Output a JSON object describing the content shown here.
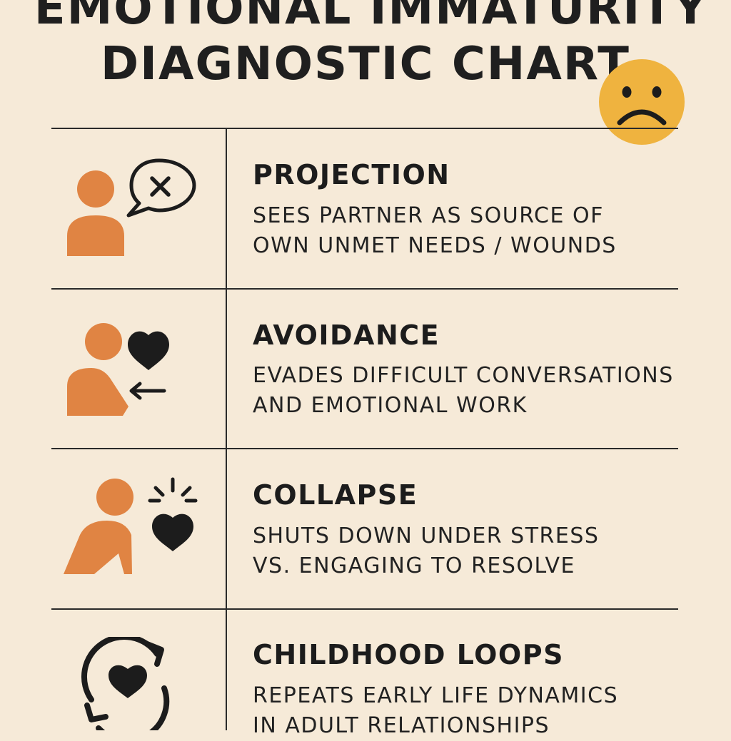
{
  "header": {
    "title_line_1": "EMOTIONAL IMMATURITY",
    "title_line_2": "DIAGNOSTIC CHART"
  },
  "colors": {
    "background": "#f6ead8",
    "figure_orange": "#e08443",
    "ink": "#1c1c1c",
    "face_yellow": "#efb33f"
  },
  "rows": [
    {
      "icon": "person-speech-bubble-x-icon",
      "title": "PROJECTION",
      "desc_line_1": "SEES PARTNER AS SOURCE OF",
      "desc_line_2": "OWN UNMET NEEDS / WOUNDS"
    },
    {
      "icon": "person-turning-from-heart-icon",
      "title": "AVOIDANCE",
      "desc_line_1": "EVADES DIFFICULT CONVERSATIONS",
      "desc_line_2": "AND EMOTIONAL WORK"
    },
    {
      "icon": "person-breaking-heart-icon",
      "title": "COLLAPSE",
      "desc_line_1": "SHUTS DOWN UNDER STRESS",
      "desc_line_2": "VS. ENGAGING TO RESOLVE"
    },
    {
      "icon": "heart-cycle-arrows-icon",
      "title": "CHILDHOOD LOOPS",
      "desc_line_1": "REPEATS EARLY LIFE DYNAMICS",
      "desc_line_2": "IN ADULT RELATIONSHIPS"
    }
  ],
  "decor": {
    "face_icon": "sad-face-icon"
  }
}
